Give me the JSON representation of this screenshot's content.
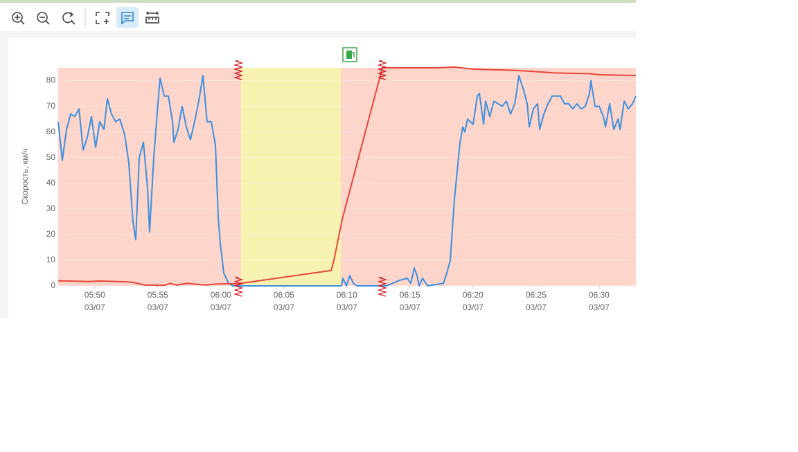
{
  "chart_data": {
    "type": "line",
    "y_label": "Скорость, км/ч",
    "xlim": [
      347.1,
      392.92
    ],
    "ylim": [
      0,
      85
    ],
    "yticks": [
      0,
      10,
      20,
      30,
      40,
      50,
      60,
      70,
      80
    ],
    "xticks": [
      {
        "value": 350,
        "label": [
          "05:50",
          "03/07"
        ]
      },
      {
        "value": 355,
        "label": [
          "05:55",
          "03/07"
        ]
      },
      {
        "value": 360,
        "label": [
          "06:00",
          "03/07"
        ]
      },
      {
        "value": 365,
        "label": [
          "06:05",
          "03/07"
        ]
      },
      {
        "value": 370,
        "label": [
          "06:10",
          "03/07"
        ]
      },
      {
        "value": 375,
        "label": [
          "06:15",
          "03/07"
        ]
      },
      {
        "value": 380,
        "label": [
          "06:20",
          "03/07"
        ]
      },
      {
        "value": 385,
        "label": [
          "06:25",
          "03/07"
        ]
      },
      {
        "value": 390,
        "label": [
          "06:30",
          "03/07"
        ]
      }
    ],
    "grid": true,
    "bands": [
      {
        "from": 347.1,
        "to": 361.6,
        "color": "#fdd5ca"
      },
      {
        "from": 361.6,
        "to": 369.52,
        "color": "#f8f2b1"
      },
      {
        "from": 369.52,
        "to": 392.92,
        "color": "#fdd5ca"
      }
    ],
    "markers": {
      "flags": [
        361.4,
        372.8
      ],
      "fuel": [
        370.23
      ]
    },
    "series": [
      {
        "color": "#3b8fe0",
        "x": [
          347.1,
          347.43,
          347.76,
          348.09,
          348.42,
          348.75,
          349.08,
          349.41,
          349.74,
          350.07,
          350.4,
          350.73,
          351.0,
          351.33,
          351.66,
          351.99,
          352.37,
          352.7,
          353.03,
          353.25,
          353.53,
          353.86,
          354.19,
          354.35,
          354.68,
          355.01,
          355.18,
          355.51,
          355.84,
          356.17,
          356.28,
          356.61,
          356.93,
          357.26,
          357.59,
          357.92,
          358.25,
          358.58,
          358.91,
          359.24,
          359.57,
          359.79,
          359.96,
          360.07,
          360.23,
          360.62,
          360.95,
          361.28,
          361.5,
          369.57,
          369.68,
          369.96,
          370.23,
          370.51,
          370.78,
          373.14,
          374.08,
          374.79,
          375.07,
          375.34,
          375.56,
          375.73,
          376.0,
          376.39,
          377.65,
          377.92,
          378.2,
          378.36,
          378.53,
          378.75,
          378.97,
          379.19,
          379.35,
          379.57,
          380.01,
          380.34,
          380.51,
          380.84,
          381.0,
          381.33,
          381.66,
          381.99,
          382.32,
          382.65,
          382.98,
          383.31,
          383.47,
          383.64,
          383.97,
          384.3,
          384.46,
          384.79,
          385.12,
          385.29,
          385.62,
          385.95,
          386.28,
          386.61,
          386.93,
          387.26,
          387.59,
          387.92,
          388.25,
          388.58,
          388.91,
          389.24,
          389.35,
          389.68,
          390.01,
          390.34,
          390.51,
          390.84,
          391.17,
          391.5,
          391.66,
          391.99,
          392.32,
          392.65,
          392.92
        ],
        "values": [
          64,
          49,
          61,
          67,
          66,
          69,
          53,
          58,
          66,
          54,
          64,
          61,
          73,
          67,
          64,
          65,
          59,
          48,
          25,
          18,
          50,
          56,
          38,
          21,
          50,
          71,
          81,
          74,
          74,
          64,
          56,
          61,
          70,
          62,
          57,
          64,
          72,
          82,
          64,
          64,
          55,
          27,
          16,
          12,
          5,
          1,
          0,
          0,
          0,
          0,
          3,
          0,
          4,
          1,
          0,
          0,
          2,
          3,
          1,
          7,
          4,
          0,
          3,
          0,
          1,
          5,
          10,
          22,
          34,
          45,
          56,
          62,
          60,
          65,
          63,
          74,
          75,
          63,
          72,
          66,
          72,
          71,
          70,
          72,
          67,
          71,
          76,
          82,
          77,
          71,
          62,
          69,
          71,
          61,
          67,
          71,
          74,
          74,
          74,
          71,
          71,
          69,
          71,
          69,
          70,
          75,
          80,
          70,
          70,
          66,
          62,
          71,
          61,
          65,
          61,
          72,
          69,
          71,
          74
        ]
      },
      {
        "color": "#e8453a",
        "x": [
          347.1,
          349.5,
          350.4,
          352.5,
          353.0,
          354.0,
          355.5,
          356.0,
          356.5,
          357.3,
          358.8,
          359.6,
          360.5,
          361.3,
          361.6,
          368.75,
          368.97,
          369.63,
          372.81,
          375.6,
          377.3,
          378.5,
          380.0,
          383.5,
          386.5,
          389.3,
          390.0,
          392.92
        ],
        "values": [
          2,
          1.7,
          1.9,
          1.6,
          1.4,
          0.3,
          0.2,
          1,
          0.3,
          1,
          0.3,
          0.7,
          0.8,
          0.8,
          1,
          6,
          10,
          26,
          85,
          85,
          85,
          85.3,
          84.5,
          84,
          83,
          82.7,
          82.3,
          82
        ]
      }
    ]
  }
}
